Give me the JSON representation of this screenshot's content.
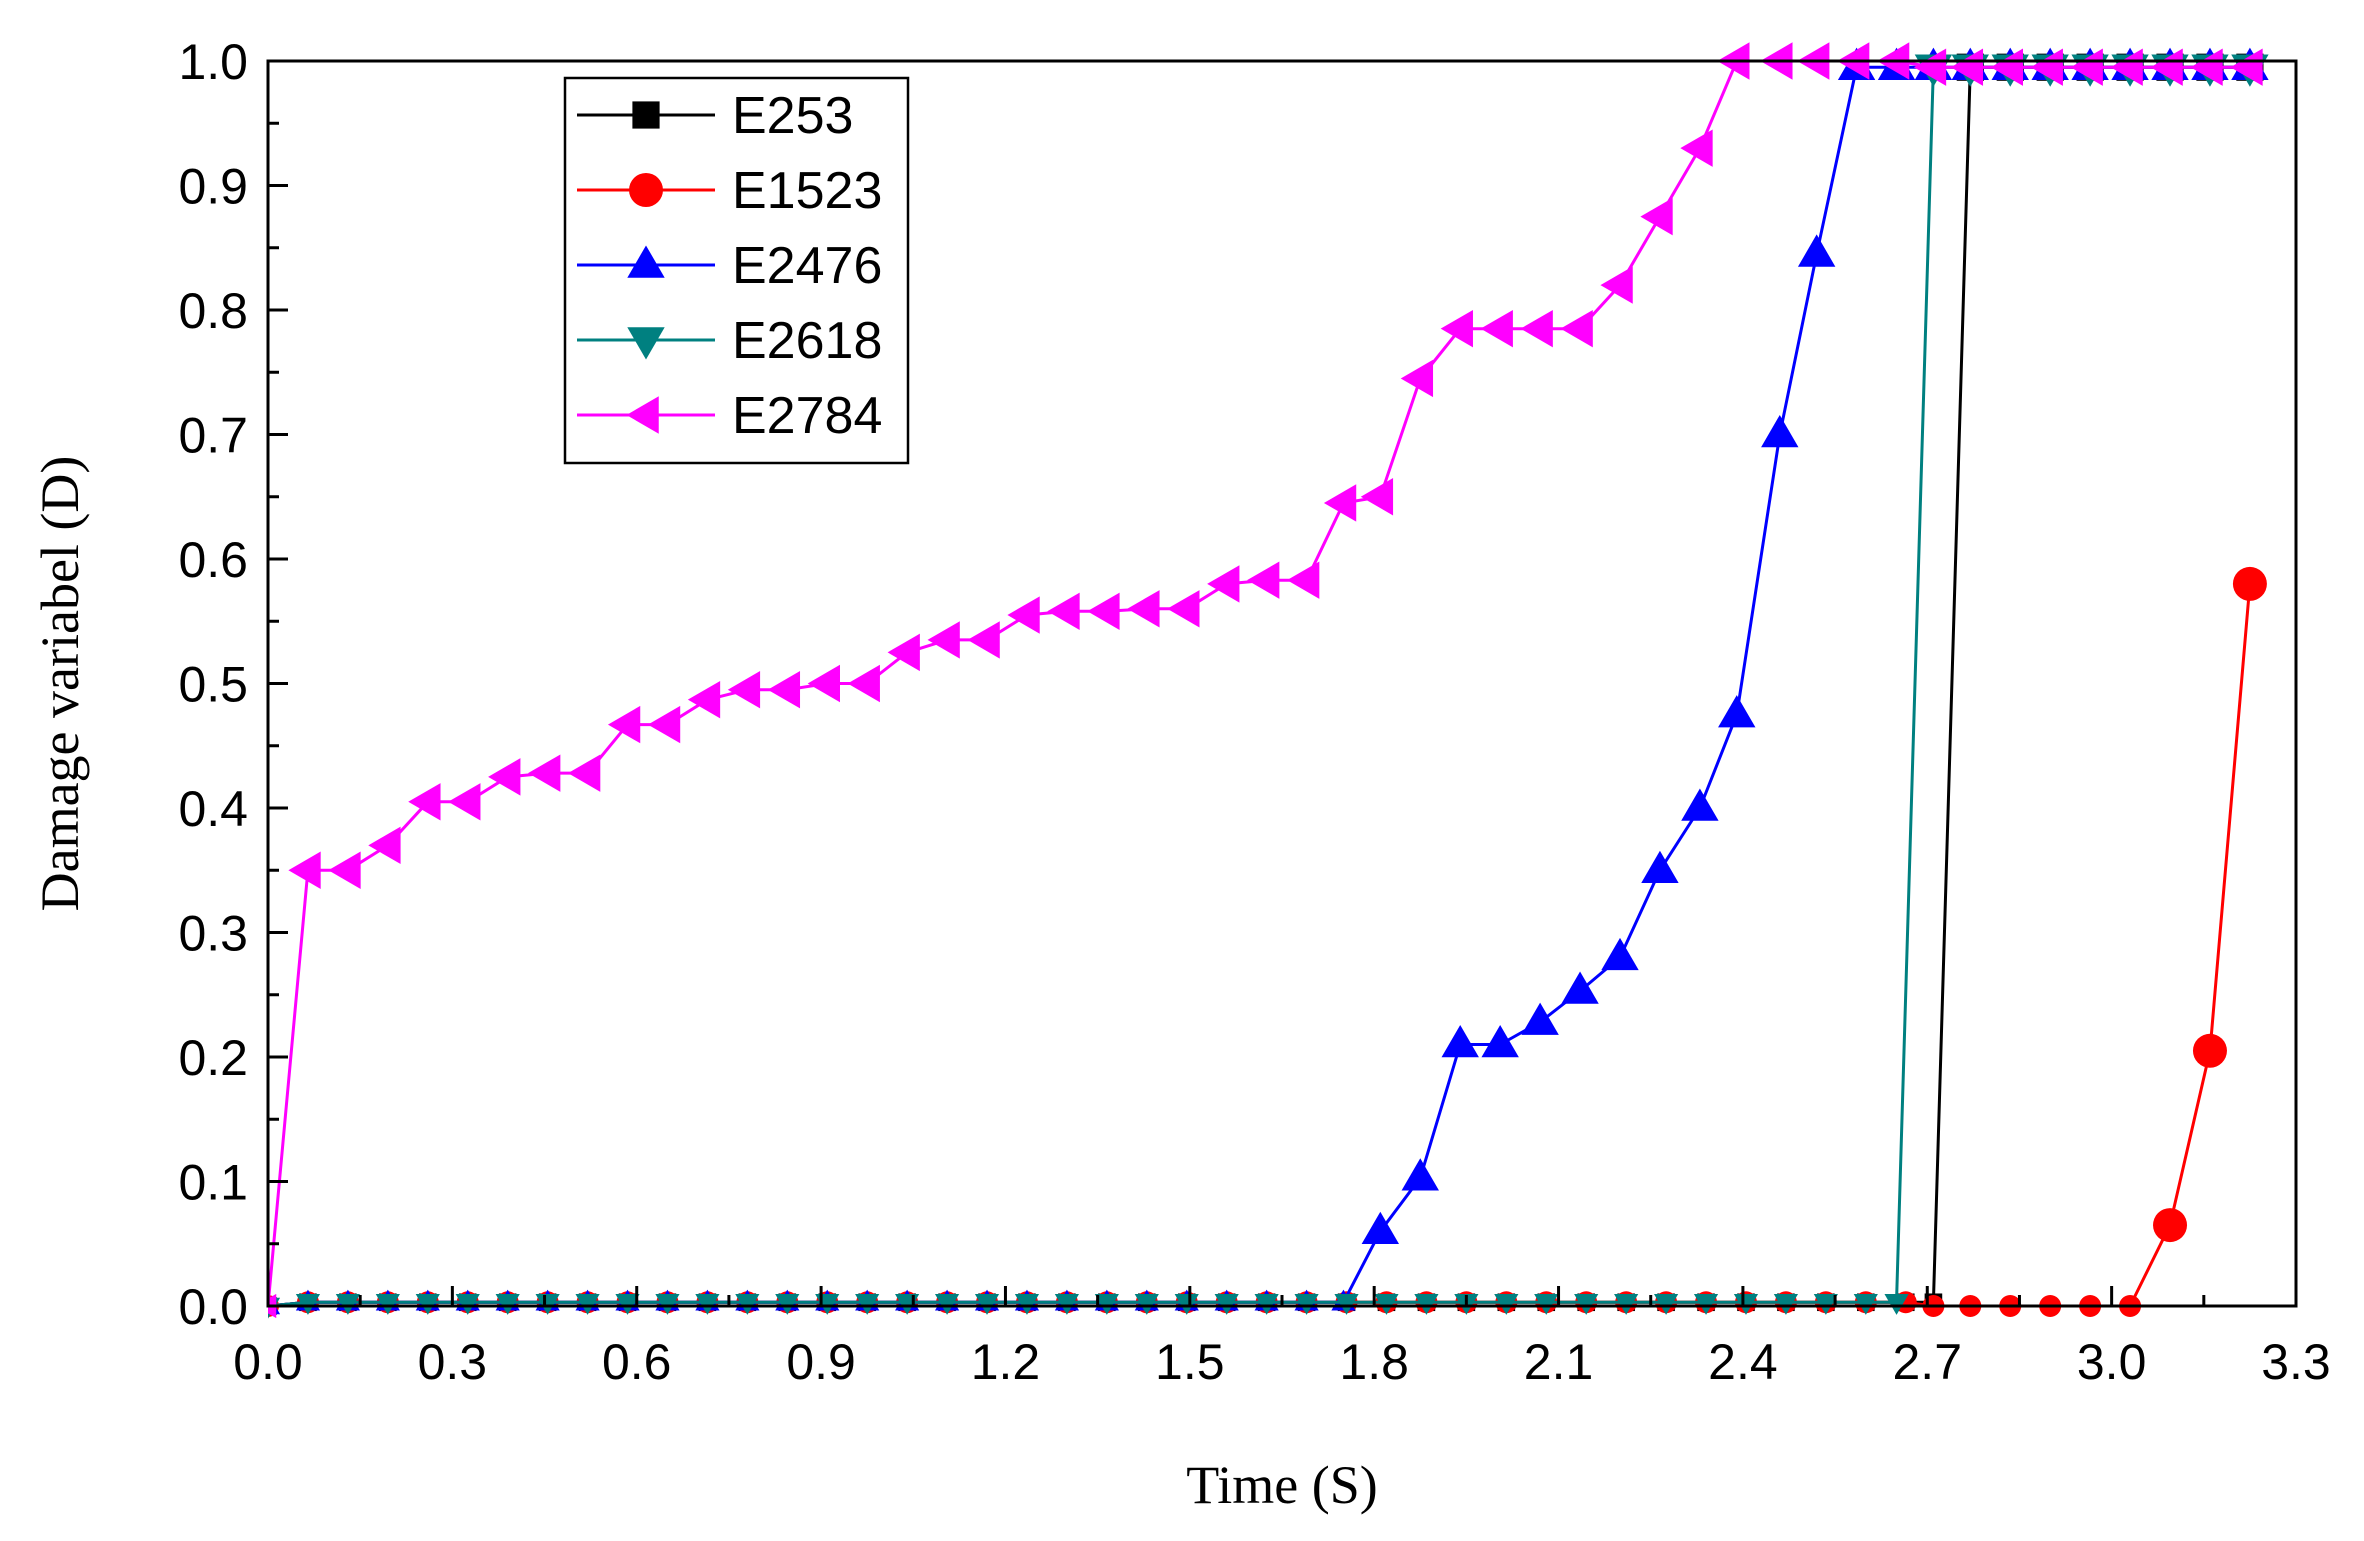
{
  "chart_data": {
    "type": "line",
    "title": "",
    "xlabel": "Time (S)",
    "ylabel": "Damage variabel (D)",
    "xlim": [
      0.0,
      3.3
    ],
    "ylim": [
      0.0,
      1.0
    ],
    "xticks": [
      "0.0",
      "0.3",
      "0.6",
      "0.9",
      "1.2",
      "1.5",
      "1.8",
      "2.1",
      "2.4",
      "2.7",
      "3.0",
      "3.3"
    ],
    "yticks": [
      "0.0",
      "0.1",
      "0.2",
      "0.3",
      "0.4",
      "0.5",
      "0.6",
      "0.7",
      "0.8",
      "0.9",
      "1.0"
    ],
    "grid": false,
    "legend_position": "top-left",
    "series": [
      {
        "name": "E253",
        "color": "#000000",
        "marker": "square",
        "x": [
          0.0,
          0.065,
          0.13,
          0.195,
          0.26,
          0.325,
          0.39,
          0.455,
          0.52,
          0.585,
          0.65,
          0.715,
          0.78,
          0.845,
          0.91,
          0.975,
          1.04,
          1.105,
          1.17,
          1.235,
          1.3,
          1.365,
          1.43,
          1.495,
          1.56,
          1.625,
          1.69,
          1.755,
          1.82,
          1.885,
          1.95,
          2.015,
          2.08,
          2.145,
          2.21,
          2.275,
          2.34,
          2.405,
          2.47,
          2.535,
          2.6,
          2.665,
          2.71,
          2.77,
          2.835,
          2.9,
          2.965,
          3.03,
          3.095,
          3.16,
          3.225
        ],
        "y": [
          0.0,
          0.003,
          0.003,
          0.003,
          0.003,
          0.003,
          0.003,
          0.003,
          0.003,
          0.003,
          0.003,
          0.003,
          0.003,
          0.003,
          0.003,
          0.003,
          0.003,
          0.003,
          0.003,
          0.003,
          0.003,
          0.003,
          0.003,
          0.003,
          0.003,
          0.003,
          0.003,
          0.003,
          0.003,
          0.003,
          0.003,
          0.003,
          0.003,
          0.003,
          0.003,
          0.003,
          0.003,
          0.003,
          0.003,
          0.003,
          0.003,
          0.003,
          0.003,
          0.995,
          0.995,
          0.995,
          0.995,
          0.995,
          0.995,
          0.995,
          0.995
        ]
      },
      {
        "name": "E1523",
        "color": "#ff0000",
        "marker": "circle",
        "x": [
          0.0,
          0.065,
          0.13,
          0.195,
          0.26,
          0.325,
          0.39,
          0.455,
          0.52,
          0.585,
          0.65,
          0.715,
          0.78,
          0.845,
          0.91,
          0.975,
          1.04,
          1.105,
          1.17,
          1.235,
          1.3,
          1.365,
          1.43,
          1.495,
          1.56,
          1.625,
          1.69,
          1.755,
          1.82,
          1.885,
          1.95,
          2.015,
          2.08,
          2.145,
          2.21,
          2.275,
          2.34,
          2.405,
          2.47,
          2.535,
          2.6,
          2.665,
          2.71,
          2.77,
          2.835,
          2.9,
          2.965,
          3.03,
          3.095,
          3.16,
          3.225
        ],
        "y": [
          0.0,
          0.003,
          0.003,
          0.003,
          0.003,
          0.003,
          0.003,
          0.003,
          0.003,
          0.003,
          0.003,
          0.003,
          0.003,
          0.003,
          0.003,
          0.003,
          0.003,
          0.003,
          0.003,
          0.003,
          0.003,
          0.003,
          0.003,
          0.003,
          0.003,
          0.003,
          0.003,
          0.003,
          0.003,
          0.003,
          0.003,
          0.003,
          0.003,
          0.003,
          0.003,
          0.003,
          0.003,
          0.003,
          0.003,
          0.003,
          0.003,
          0.003,
          0.0,
          0.0,
          0.0,
          0.0,
          0.0,
          0.0,
          0.065,
          0.205,
          0.58
        ]
      },
      {
        "name": "E2476",
        "color": "#0000ff",
        "marker": "triangle-up",
        "x": [
          0.0,
          0.065,
          0.13,
          0.195,
          0.26,
          0.325,
          0.39,
          0.455,
          0.52,
          0.585,
          0.65,
          0.715,
          0.78,
          0.845,
          0.91,
          0.975,
          1.04,
          1.105,
          1.17,
          1.235,
          1.3,
          1.365,
          1.43,
          1.495,
          1.56,
          1.625,
          1.69,
          1.75,
          1.81,
          1.875,
          1.94,
          2.005,
          2.07,
          2.135,
          2.2,
          2.265,
          2.33,
          2.39,
          2.46,
          2.52,
          2.585,
          2.65,
          2.71,
          2.77,
          2.835,
          2.9,
          2.965,
          3.03,
          3.095,
          3.16,
          3.225
        ],
        "y": [
          0.0,
          0.003,
          0.003,
          0.003,
          0.003,
          0.003,
          0.003,
          0.003,
          0.003,
          0.003,
          0.003,
          0.003,
          0.003,
          0.003,
          0.003,
          0.003,
          0.003,
          0.003,
          0.003,
          0.003,
          0.003,
          0.003,
          0.003,
          0.003,
          0.003,
          0.003,
          0.003,
          0.003,
          0.06,
          0.103,
          0.21,
          0.21,
          0.228,
          0.253,
          0.28,
          0.35,
          0.4,
          0.475,
          0.7,
          0.845,
          0.995,
          0.995,
          0.995,
          0.995,
          0.995,
          0.995,
          0.995,
          0.995,
          0.995,
          0.995,
          0.995
        ]
      },
      {
        "name": "E2618",
        "color": "#008080",
        "marker": "triangle-down",
        "x": [
          0.0,
          0.065,
          0.13,
          0.195,
          0.26,
          0.325,
          0.39,
          0.455,
          0.52,
          0.585,
          0.65,
          0.715,
          0.78,
          0.845,
          0.91,
          0.975,
          1.04,
          1.105,
          1.17,
          1.235,
          1.3,
          1.365,
          1.43,
          1.495,
          1.56,
          1.625,
          1.69,
          1.755,
          1.82,
          1.885,
          1.95,
          2.015,
          2.08,
          2.145,
          2.21,
          2.275,
          2.34,
          2.405,
          2.47,
          2.535,
          2.6,
          2.65,
          2.71,
          2.77,
          2.835,
          2.9,
          2.965,
          3.03,
          3.095,
          3.16,
          3.225
        ],
        "y": [
          0.0,
          0.003,
          0.003,
          0.003,
          0.003,
          0.003,
          0.003,
          0.003,
          0.003,
          0.003,
          0.003,
          0.003,
          0.003,
          0.003,
          0.003,
          0.003,
          0.003,
          0.003,
          0.003,
          0.003,
          0.003,
          0.003,
          0.003,
          0.003,
          0.003,
          0.003,
          0.003,
          0.003,
          0.003,
          0.003,
          0.003,
          0.003,
          0.003,
          0.003,
          0.003,
          0.003,
          0.003,
          0.003,
          0.003,
          0.003,
          0.003,
          0.003,
          0.995,
          0.995,
          0.995,
          0.995,
          0.995,
          0.995,
          0.995,
          0.995,
          0.995
        ]
      },
      {
        "name": "E2784",
        "color": "#ff00ff",
        "marker": "triangle-left",
        "x": [
          0.0,
          0.065,
          0.13,
          0.195,
          0.26,
          0.325,
          0.39,
          0.455,
          0.52,
          0.585,
          0.65,
          0.715,
          0.78,
          0.845,
          0.91,
          0.975,
          1.04,
          1.105,
          1.17,
          1.235,
          1.3,
          1.365,
          1.43,
          1.495,
          1.56,
          1.625,
          1.69,
          1.75,
          1.81,
          1.875,
          1.94,
          2.005,
          2.07,
          2.135,
          2.2,
          2.265,
          2.33,
          2.39,
          2.46,
          2.52,
          2.585,
          2.65,
          2.71,
          2.77,
          2.835,
          2.9,
          2.965,
          3.03,
          3.095,
          3.16,
          3.225
        ],
        "y": [
          0.0,
          0.35,
          0.35,
          0.37,
          0.405,
          0.405,
          0.425,
          0.428,
          0.428,
          0.467,
          0.467,
          0.487,
          0.495,
          0.495,
          0.5,
          0.5,
          0.525,
          0.535,
          0.535,
          0.555,
          0.558,
          0.558,
          0.56,
          0.56,
          0.58,
          0.583,
          0.583,
          0.645,
          0.65,
          0.745,
          0.785,
          0.785,
          0.785,
          0.785,
          0.82,
          0.875,
          0.93,
          1.0,
          1.0,
          1.0,
          1.0,
          1.0,
          0.995,
          0.995,
          0.995,
          0.995,
          0.995,
          0.995,
          0.995,
          0.995,
          0.995
        ]
      }
    ]
  }
}
